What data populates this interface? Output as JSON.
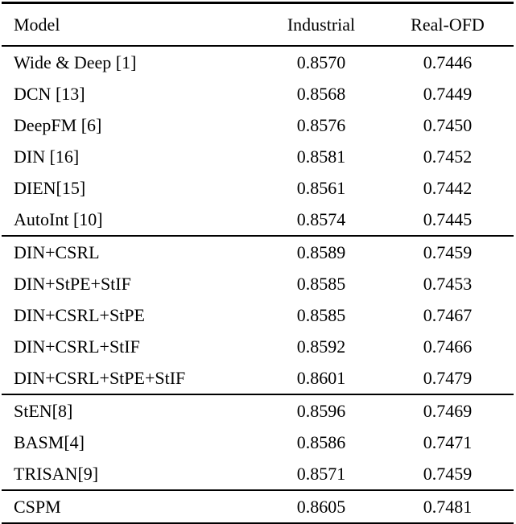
{
  "page": {
    "background_color": "#ffffff",
    "text_color": "#000000",
    "rule_color": "#000000"
  },
  "table": {
    "columns": [
      {
        "label": "Model",
        "align": "left"
      },
      {
        "label": "Industrial",
        "align": "center"
      },
      {
        "label": "Real-OFD",
        "align": "center"
      }
    ],
    "groups": [
      {
        "rows": [
          {
            "cells": [
              "Wide & Deep [1]",
              "0.8570",
              "0.7446"
            ]
          },
          {
            "cells": [
              "DCN [13]",
              "0.8568",
              "0.7449"
            ]
          },
          {
            "cells": [
              "DeepFM [6]",
              "0.8576",
              "0.7450"
            ]
          },
          {
            "cells": [
              "DIN [16]",
              "0.8581",
              "0.7452"
            ]
          },
          {
            "cells": [
              "DIEN[15]",
              "0.8561",
              "0.7442"
            ]
          },
          {
            "cells": [
              "AutoInt [10]",
              "0.8574",
              "0.7445"
            ]
          }
        ]
      },
      {
        "rows": [
          {
            "cells": [
              "DIN+CSRL",
              "0.8589",
              "0.7459"
            ]
          },
          {
            "cells": [
              "DIN+StPE+StIF",
              "0.8585",
              "0.7453"
            ]
          },
          {
            "cells": [
              "DIN+CSRL+StPE",
              "0.8585",
              "0.7467"
            ]
          },
          {
            "cells": [
              "DIN+CSRL+StIF",
              "0.8592",
              "0.7466"
            ]
          },
          {
            "cells": [
              "DIN+CSRL+StPE+StIF",
              "0.8601",
              "0.7479"
            ]
          }
        ]
      },
      {
        "rows": [
          {
            "cells": [
              "StEN[8]",
              "0.8596",
              "0.7469"
            ]
          },
          {
            "cells": [
              "BASM[4]",
              "0.8586",
              "0.7471"
            ]
          },
          {
            "cells": [
              "TRISAN[9]",
              "0.8571",
              "0.7459"
            ]
          }
        ]
      },
      {
        "rows": [
          {
            "cells": [
              "CSPM",
              "0.8605",
              "0.7481"
            ]
          }
        ]
      }
    ]
  }
}
